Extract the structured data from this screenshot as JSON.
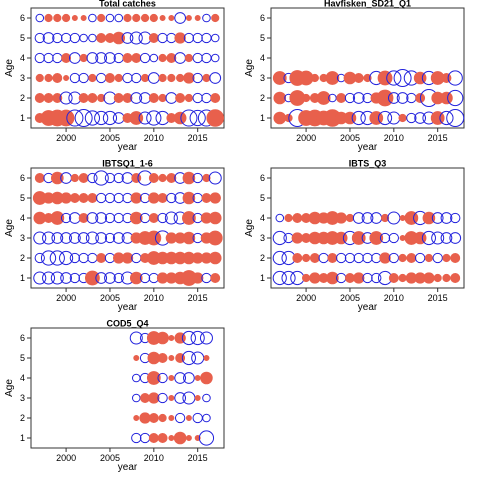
{
  "colors": {
    "positive": "#e8604c",
    "negative": "#2222dd",
    "frame": "#333333"
  },
  "chart_data": [
    {
      "type": "bubble",
      "title": "Total catches",
      "xlabel": "year",
      "ylabel": "Age",
      "xlim": [
        1996,
        2018
      ],
      "ylim": [
        0.5,
        6.5
      ],
      "xticks": [
        2000,
        2005,
        2010,
        2015
      ],
      "yticks": [
        1,
        2,
        3,
        4,
        5,
        6
      ],
      "ages": [
        1,
        2,
        3,
        4,
        5,
        6
      ],
      "years": [
        1997,
        1998,
        1999,
        2000,
        2001,
        2002,
        2003,
        2004,
        2005,
        2006,
        2007,
        2008,
        2009,
        2010,
        2011,
        2012,
        2013,
        2014,
        2015,
        2016,
        2017
      ],
      "residuals": [
        [
          0.3,
          0.8,
          0.9,
          0.9,
          -0.9,
          -1.0,
          -0.7,
          -0.6,
          -0.6,
          -0.4,
          0.3,
          0.6,
          -0.5,
          -0.7,
          -0.6,
          0.3,
          0.5,
          -0.9,
          -0.8,
          -0.9,
          1.0
        ],
        [
          0.3,
          0.3,
          0.3,
          -0.5,
          -0.5,
          0.3,
          0.3,
          0.2,
          -0.5,
          0.3,
          0.3,
          -0.4,
          -0.4,
          0.3,
          0.2,
          -0.4,
          0.3,
          0.2,
          -0.3,
          -0.3,
          0.3
        ],
        [
          0.2,
          0.2,
          0.3,
          0.1,
          -0.3,
          -0.3,
          0.2,
          -0.3,
          0.3,
          0.2,
          -0.3,
          -0.3,
          0.2,
          -0.4,
          0.2,
          0.2,
          0.2,
          0.4,
          -0.3,
          0.2,
          -0.4
        ],
        [
          -0.3,
          -0.3,
          -0.3,
          0.3,
          -0.4,
          0.2,
          -0.4,
          -0.4,
          -0.4,
          -0.3,
          0.3,
          0.3,
          -0.3,
          -0.2,
          0.2,
          0.3,
          -0.4,
          0.2,
          -0.3,
          -0.3,
          -0.2
        ],
        [
          -0.3,
          -0.4,
          -0.3,
          -0.3,
          -0.3,
          -0.2,
          -0.2,
          0.3,
          0.3,
          0.5,
          -0.4,
          -0.5,
          -0.5,
          0.3,
          -0.3,
          -0.3,
          0.4,
          -0.3,
          -0.3,
          -0.3,
          -0.2
        ],
        [
          -0.2,
          0.2,
          0.2,
          0.2,
          0.1,
          0.1,
          -0.2,
          0.2,
          -0.2,
          -0.2,
          0.2,
          0.2,
          0.2,
          0.2,
          0.1,
          0.1,
          -0.4,
          0.1,
          0.1,
          -0.2,
          0.2
        ]
      ]
    },
    {
      "type": "bubble",
      "title": "Havfisken_SD21_Q1",
      "xlabel": "year",
      "ylabel": "Age",
      "xlim": [
        1996,
        2018
      ],
      "ylim": [
        0.5,
        6.5
      ],
      "xticks": [
        2000,
        2005,
        2010,
        2015
      ],
      "yticks": [
        1,
        2,
        3,
        4,
        5,
        6
      ],
      "ages": [
        1,
        2,
        3
      ],
      "years": [
        1997,
        1998,
        1999,
        2000,
        2001,
        2002,
        2003,
        2004,
        2005,
        2006,
        2007,
        2008,
        2009,
        2010,
        2011,
        2012,
        2013,
        2014,
        2015,
        2016,
        2017
      ],
      "residuals": [
        [
          0.5,
          0.2,
          -1.0,
          0.8,
          0.9,
          0.7,
          1.0,
          0.5,
          0.5,
          -0.6,
          -0.6,
          0.6,
          -0.6,
          -0.5,
          0.2,
          -0.3,
          -0.4,
          -0.5,
          0.6,
          -0.6,
          -1.0
        ],
        [
          0.5,
          -0.2,
          0.8,
          0.2,
          0.3,
          0.6,
          -0.2,
          0.3,
          -0.3,
          -0.4,
          -0.3,
          0.4,
          0.9,
          -0.4,
          -0.4,
          -0.3,
          0.3,
          -1.0,
          0.5,
          0.5,
          -0.8
        ],
        [
          0.6,
          -0.3,
          0.8,
          0.7,
          0.2,
          0.2,
          0.6,
          -0.2,
          0.5,
          0.3,
          0.2,
          -0.6,
          0.7,
          -0.7,
          -1.0,
          -0.7,
          0.5,
          -0.6,
          0.6,
          0.3,
          -0.7
        ]
      ]
    },
    {
      "type": "bubble",
      "title": "IBTSQ1_1-6",
      "xlabel": "year",
      "ylabel": "Age",
      "xlim": [
        1996,
        2018
      ],
      "ylim": [
        0.5,
        6.5
      ],
      "xticks": [
        2000,
        2005,
        2010,
        2015
      ],
      "yticks": [
        1,
        2,
        3,
        4,
        5,
        6
      ],
      "ages": [
        1,
        2,
        3,
        4,
        5,
        6
      ],
      "years": [
        1997,
        1998,
        1999,
        2000,
        2001,
        2002,
        2003,
        2004,
        2005,
        2006,
        2007,
        2008,
        2009,
        2010,
        2011,
        2012,
        2013,
        2014,
        2015,
        2016,
        2017
      ],
      "residuals": [
        [
          -0.5,
          -0.5,
          -0.5,
          -0.4,
          -0.3,
          -0.3,
          0.7,
          -0.4,
          -0.4,
          -0.3,
          -0.5,
          0.5,
          -0.3,
          -0.3,
          0.4,
          0.4,
          0.5,
          0.8,
          0.4,
          -0.3,
          0.3
        ],
        [
          -0.3,
          -0.7,
          -0.7,
          -0.6,
          -0.3,
          -0.3,
          -0.3,
          0.3,
          -0.3,
          0.4,
          0.4,
          -0.3,
          0.3,
          0.6,
          0.5,
          0.5,
          0.5,
          0.5,
          0.4,
          0.4,
          0.5
        ],
        [
          -0.5,
          -0.5,
          -0.4,
          -0.4,
          -0.4,
          -0.4,
          -0.5,
          -0.4,
          -0.3,
          -0.4,
          -0.4,
          0.4,
          0.6,
          0.7,
          -0.7,
          0.4,
          0.4,
          0.5,
          -0.3,
          0.4,
          0.7
        ],
        [
          0.5,
          0.3,
          0.6,
          -0.3,
          -0.4,
          0.3,
          -0.4,
          -0.4,
          -0.3,
          -0.3,
          -0.3,
          0.5,
          -0.3,
          0.3,
          -0.3,
          -0.5,
          -0.5,
          0.6,
          -0.3,
          0.4,
          0.5
        ],
        [
          0.6,
          0.4,
          0.5,
          0.4,
          0.3,
          0.3,
          0.3,
          -0.3,
          -0.3,
          -0.3,
          -0.3,
          0.4,
          -0.3,
          0.4,
          0.3,
          -0.3,
          -0.4,
          0.5,
          -0.3,
          0.3,
          0.4
        ],
        [
          0.3,
          -0.3,
          0.5,
          -0.4,
          0.2,
          0.3,
          -0.3,
          -0.7,
          -0.3,
          -0.3,
          -0.4,
          0.3,
          -0.7,
          0.3,
          0.2,
          0.3,
          -0.4,
          0.5,
          -0.3,
          0.2,
          -0.5
        ]
      ]
    },
    {
      "type": "bubble",
      "title": "IBTS_Q3",
      "xlabel": "year",
      "ylabel": "Age",
      "xlim": [
        1996,
        2018
      ],
      "ylim": [
        0.5,
        6.5
      ],
      "xticks": [
        2000,
        2005,
        2010,
        2015
      ],
      "yticks": [
        1,
        2,
        3,
        4,
        5,
        6
      ],
      "ages": [
        1,
        2,
        3,
        4
      ],
      "years": [
        1997,
        1998,
        1999,
        2000,
        2001,
        2002,
        2003,
        2004,
        2005,
        2006,
        2007,
        2008,
        2009,
        2010,
        2011,
        2012,
        2013,
        2014,
        2015,
        2016,
        2017
      ],
      "residuals": [
        [
          -0.6,
          -0.6,
          -0.6,
          0.2,
          0.4,
          0.3,
          0.5,
          -0.3,
          0.3,
          0.4,
          -0.3,
          -0.3,
          -0.6,
          0.3,
          0.2,
          0.4,
          0.4,
          0.4,
          0.2,
          0.2,
          0.3
        ],
        [
          -0.6,
          -0.6,
          0.3,
          0.2,
          0.3,
          -0.3,
          0.3,
          -0.3,
          -0.3,
          -0.3,
          -0.3,
          -0.3,
          0.4,
          -0.3,
          0.2,
          0.3,
          -0.3,
          0.2,
          -0.3,
          0.2,
          0.3
        ],
        [
          -0.6,
          -0.3,
          0.4,
          0.3,
          0.5,
          0.5,
          0.6,
          0.5,
          -0.6,
          0.6,
          -0.4,
          0.6,
          -0.3,
          -0.3,
          0.1,
          0.6,
          0.5,
          -0.6,
          -0.5,
          -0.4,
          -0.4
        ],
        [
          -0.2,
          0.2,
          0.3,
          0.3,
          0.5,
          0.4,
          0.6,
          0.4,
          0.2,
          -0.4,
          -0.4,
          -0.4,
          0.2,
          -0.5,
          0.1,
          0.6,
          -0.6,
          0.5,
          -0.4,
          -0.4,
          -0.3
        ]
      ]
    },
    {
      "type": "bubble",
      "title": "COD5_Q4",
      "xlabel": "year",
      "ylabel": "Age",
      "xlim": [
        1996,
        2018
      ],
      "ylim": [
        0.5,
        6.5
      ],
      "xticks": [
        2000,
        2005,
        2010,
        2015
      ],
      "yticks": [
        1,
        2,
        3,
        4,
        5,
        6
      ],
      "ages": [
        1,
        2,
        3,
        4,
        5,
        6
      ],
      "years": [
        2008,
        2009,
        2010,
        2011,
        2012,
        2013,
        2014,
        2015,
        2016
      ],
      "residuals": [
        [
          -0.3,
          -0.3,
          0.3,
          0.3,
          0.1,
          0.5,
          0.1,
          0.1,
          -0.7
        ],
        [
          0.1,
          0.4,
          0.3,
          0.2,
          0.1,
          -0.3,
          0.1,
          -0.3,
          -0.2
        ],
        [
          -0.2,
          0.3,
          0.4,
          -0.3,
          0.1,
          -0.4,
          -0.5,
          0.1,
          -0.2
        ],
        [
          -0.2,
          -0.3,
          0.6,
          -0.3,
          0.1,
          -0.4,
          -0.4,
          0.1,
          0.5
        ],
        [
          0.1,
          -0.3,
          0.5,
          0.3,
          0.1,
          0.3,
          -0.6,
          -0.5,
          0.1
        ],
        [
          -0.5,
          -0.3,
          0.6,
          0.5,
          0.1,
          0.4,
          -0.6,
          -0.6,
          -0.5
        ]
      ]
    }
  ]
}
